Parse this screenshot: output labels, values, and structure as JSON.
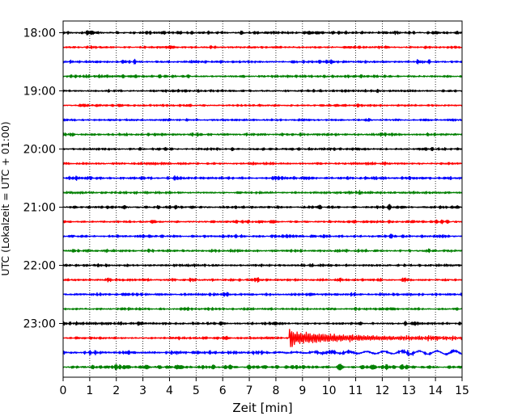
{
  "chart_data": {
    "type": "line",
    "title": "",
    "xlabel": "Zeit  [min]",
    "ylabel": "UTC (Lokalzeit = UTC + 01:00)",
    "xlim": [
      0,
      15
    ],
    "x_ticks": [
      "0",
      "1",
      "2",
      "3",
      "4",
      "5",
      "6",
      "7",
      "8",
      "9",
      "10",
      "11",
      "12",
      "13",
      "14",
      "15"
    ],
    "y_ticks": [
      "18:00",
      "19:00",
      "20:00",
      "21:00",
      "22:00",
      "23:00"
    ],
    "trace_interval_min": 15,
    "trace_start": "18:00",
    "trace_count": 24,
    "grid": "vertical-dotted",
    "trace_colors": [
      "#000000",
      "#ff0000",
      "#0000ff",
      "#008000"
    ],
    "event": {
      "trace_start": "23:15",
      "onset_min": 8.5,
      "color": "#ff0000"
    }
  }
}
